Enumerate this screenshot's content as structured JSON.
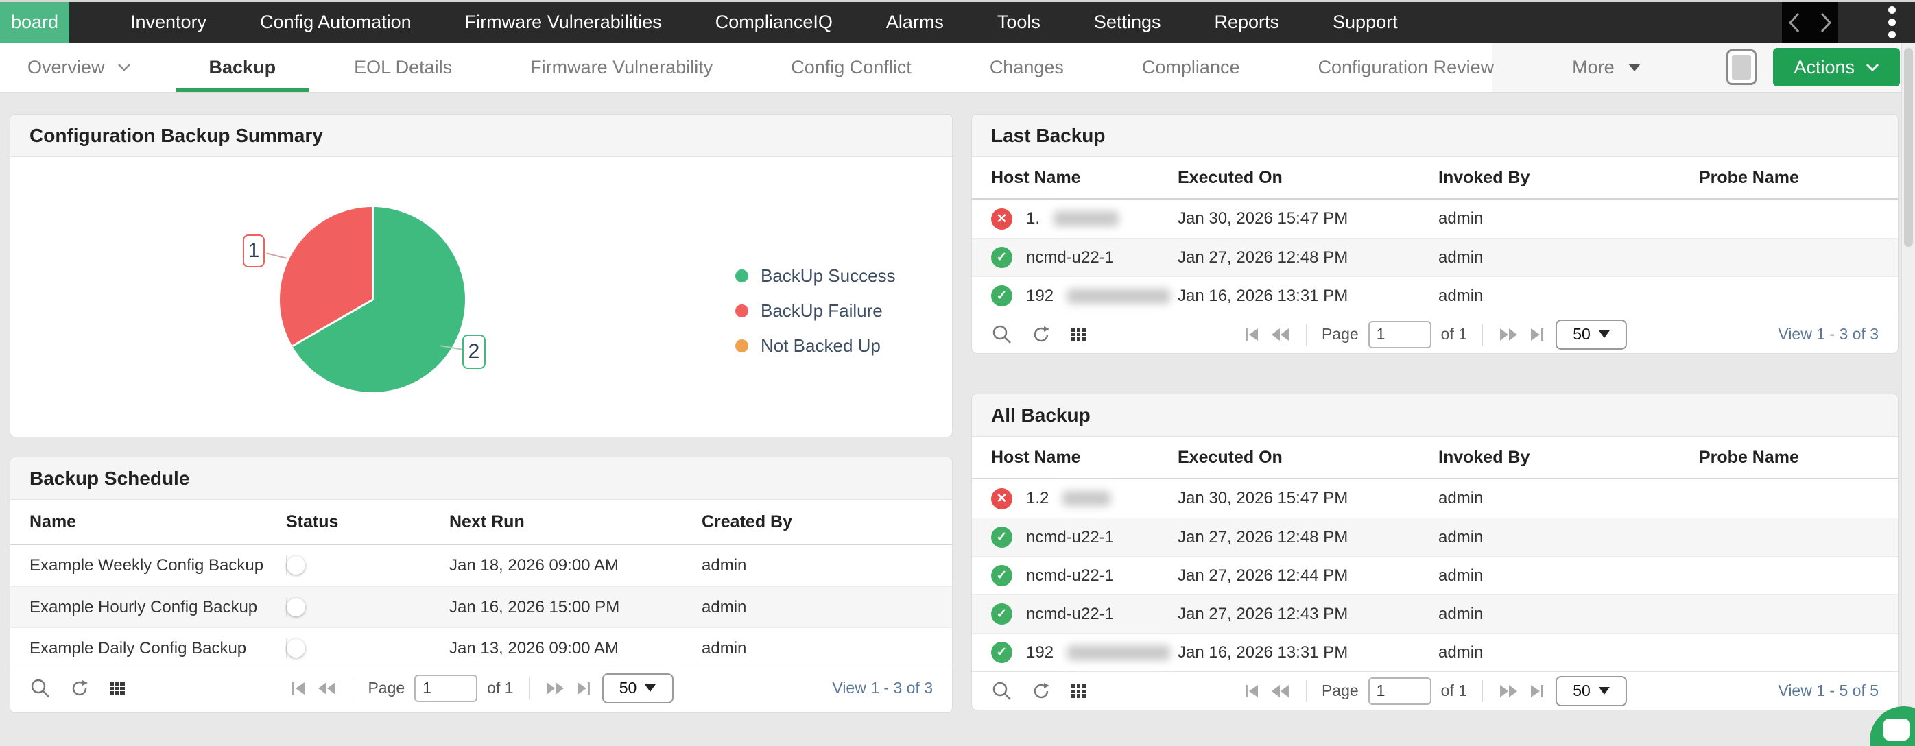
{
  "navbar": {
    "active_item": "board",
    "items": [
      "Inventory",
      "Config Automation",
      "Firmware Vulnerabilities",
      "ComplianceIQ",
      "Alarms",
      "Tools",
      "Settings",
      "Reports",
      "Support"
    ]
  },
  "tabbar": {
    "dropdown_tab": "Overview",
    "active_tab": "Backup",
    "tabs": [
      "Backup",
      "EOL Details",
      "Firmware Vulnerability",
      "Config Conflict",
      "Changes",
      "Compliance",
      "Configuration Review"
    ],
    "more_label": "More",
    "actions_label": "Actions"
  },
  "colors": {
    "nav_active_green": "#4eb884",
    "actions_green": "#1fa053",
    "tab_underline_green": "#2ea35c",
    "status_success_green": "#41af63",
    "status_failure_red": "#e84e4d"
  },
  "icons": {
    "success_glyph": "✓",
    "failure_glyph": "✕"
  },
  "chart_data": {
    "type": "pie",
    "title": "Configuration Backup Summary",
    "labels": [
      "BackUp Success",
      "BackUp Failure",
      "Not Backed Up"
    ],
    "values": [
      2,
      1,
      0
    ],
    "colors": [
      "#3fbb80",
      "#f25f5f",
      "#f0a14e"
    ],
    "slice_value_labels": {
      "success": "2",
      "failure": "1"
    },
    "legend_position": "right"
  },
  "summary_panel": {
    "title": "Configuration Backup Summary"
  },
  "schedule_panel": {
    "title": "Backup Schedule",
    "columns": [
      "Name",
      "Status",
      "Next Run",
      "Created By"
    ],
    "rows": [
      {
        "name": "Example Weekly Config Backup",
        "status_on": false,
        "next_run": "Jan 18, 2026 09:00 AM",
        "created_by": "admin"
      },
      {
        "name": "Example Hourly Config Backup",
        "status_on": false,
        "next_run": "Jan 16, 2026 15:00 PM",
        "created_by": "admin"
      },
      {
        "name": "Example Daily Config Backup",
        "status_on": false,
        "next_run": "Jan 13, 2026 09:00 AM",
        "created_by": "admin"
      }
    ],
    "pagination": {
      "page_label": "Page",
      "page_value": "1",
      "of_label": "of 1",
      "page_size": "50",
      "view": "View 1 - 3 of 3"
    }
  },
  "last_backup_panel": {
    "title": "Last Backup",
    "columns": [
      "Host Name",
      "Executed On",
      "Invoked By",
      "Probe Name"
    ],
    "rows": [
      {
        "status": "failure",
        "host_visible": "1.",
        "executed_on": "Jan 30, 2026 15:47 PM",
        "invoked_by": "admin",
        "probe_name": ""
      },
      {
        "status": "success",
        "host_visible": "ncmd-u22-1",
        "executed_on": "Jan 27, 2026 12:48 PM",
        "invoked_by": "admin",
        "probe_name": ""
      },
      {
        "status": "success",
        "host_visible": "192",
        "executed_on": "Jan 16, 2026 13:31 PM",
        "invoked_by": "admin",
        "probe_name": ""
      }
    ],
    "pagination": {
      "page_label": "Page",
      "page_value": "1",
      "of_label": "of 1",
      "page_size": "50",
      "view": "View 1 - 3 of 3"
    }
  },
  "all_backup_panel": {
    "title": "All Backup",
    "columns": [
      "Host Name",
      "Executed On",
      "Invoked By",
      "Probe Name"
    ],
    "rows": [
      {
        "status": "failure",
        "host_visible": "1.2",
        "executed_on": "Jan 30, 2026 15:47 PM",
        "invoked_by": "admin",
        "probe_name": ""
      },
      {
        "status": "success",
        "host_visible": "ncmd-u22-1",
        "executed_on": "Jan 27, 2026 12:48 PM",
        "invoked_by": "admin",
        "probe_name": ""
      },
      {
        "status": "success",
        "host_visible": "ncmd-u22-1",
        "executed_on": "Jan 27, 2026 12:44 PM",
        "invoked_by": "admin",
        "probe_name": ""
      },
      {
        "status": "success",
        "host_visible": "ncmd-u22-1",
        "executed_on": "Jan 27, 2026 12:43 PM",
        "invoked_by": "admin",
        "probe_name": ""
      },
      {
        "status": "success",
        "host_visible": "192",
        "executed_on": "Jan 16, 2026 13:31 PM",
        "invoked_by": "admin",
        "probe_name": ""
      }
    ],
    "pagination": {
      "page_label": "Page",
      "page_value": "1",
      "of_label": "of 1",
      "page_size": "50",
      "view": "View 1 - 5 of 5"
    }
  }
}
